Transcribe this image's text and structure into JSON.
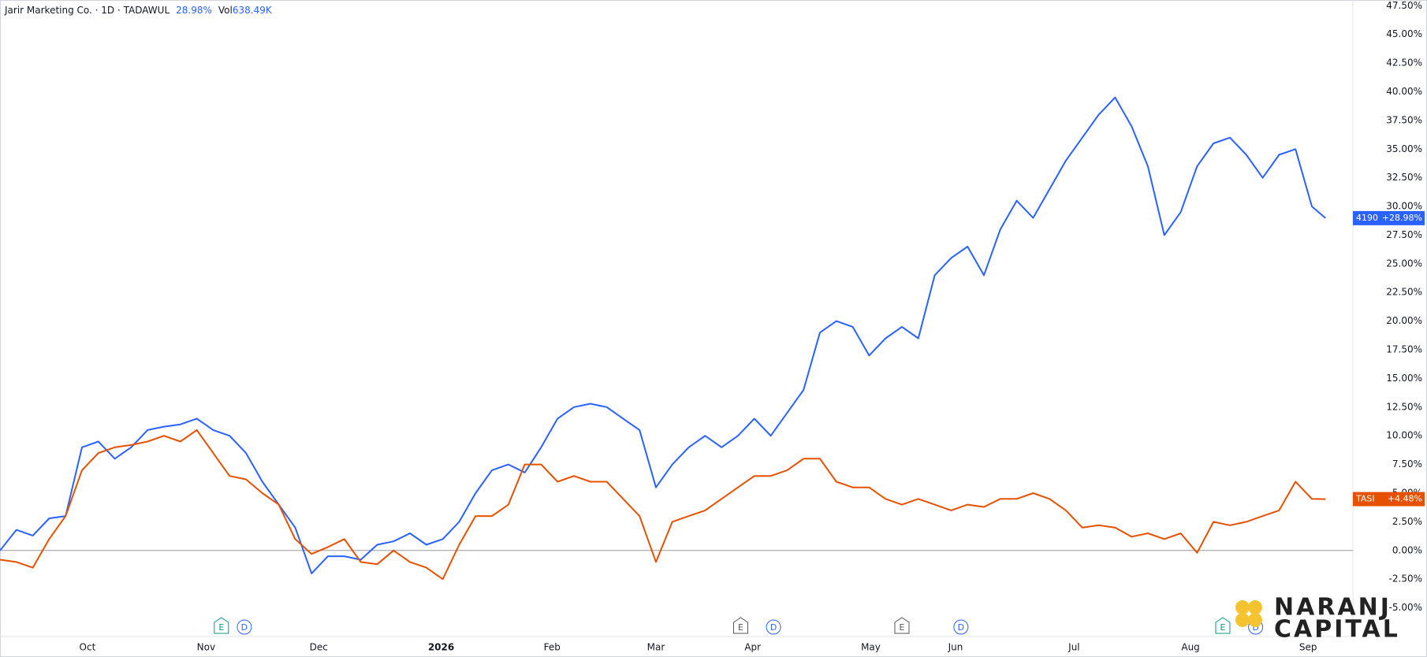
{
  "chart_data": {
    "type": "line",
    "title": "Jarir Marketing Co. · 1D · TADAWUL",
    "change_label": "28.98%",
    "volume_label": "Vol",
    "volume": "638.49K",
    "x": [
      0,
      3,
      6,
      9,
      12,
      15,
      18,
      21,
      24,
      27,
      30,
      33,
      36,
      39,
      42,
      45,
      48,
      51,
      54,
      57,
      60,
      63,
      66,
      69,
      72,
      75,
      78,
      81,
      84,
      87,
      90,
      93,
      96,
      99,
      102,
      105,
      108,
      111,
      114,
      117,
      120,
      123,
      126,
      129,
      132,
      135,
      138,
      141,
      144,
      147,
      150,
      153,
      156,
      159,
      162,
      165,
      168,
      171,
      174,
      177,
      180,
      183,
      186,
      189,
      192,
      195,
      198,
      201,
      204,
      207,
      210,
      213,
      216,
      219,
      222,
      225,
      228,
      231,
      234,
      237,
      240,
      242.5
    ],
    "series": [
      {
        "name": "4190",
        "color": "#2962ff",
        "last_label": "+28.98%",
        "values": [
          0,
          1.8,
          1.3,
          2.8,
          3.0,
          9.0,
          9.5,
          8.0,
          9.0,
          10.5,
          10.8,
          11.0,
          11.5,
          10.5,
          10.0,
          8.5,
          6.0,
          4.0,
          2.0,
          -2.0,
          -0.5,
          -0.5,
          -0.8,
          0.5,
          0.8,
          1.5,
          0.5,
          1.0,
          2.5,
          5.0,
          7.0,
          7.5,
          6.8,
          9.0,
          11.5,
          12.5,
          12.8,
          12.5,
          11.5,
          10.5,
          5.5,
          7.5,
          9.0,
          10.0,
          9.0,
          10.0,
          11.5,
          10.0,
          12.0,
          14.0,
          19.0,
          20.0,
          19.5,
          17.0,
          18.5,
          19.5,
          18.5,
          24.0,
          25.5,
          26.5,
          24.0,
          28.0,
          30.5,
          29.0,
          31.5,
          34.0,
          36.0,
          38.0,
          39.5,
          37.0,
          33.5,
          27.5,
          29.5,
          33.5,
          35.5,
          36.0,
          34.5,
          32.5,
          34.5,
          35.0,
          30.0,
          28.98
        ]
      },
      {
        "name": "TASI",
        "color": "#e65100",
        "last_label": "+4.48%",
        "values": [
          -0.8,
          -1.0,
          -1.5,
          1.0,
          3.0,
          7.0,
          8.5,
          9.0,
          9.2,
          9.5,
          10.0,
          9.5,
          10.5,
          8.5,
          6.5,
          6.2,
          5.0,
          4.0,
          1.0,
          -0.3,
          0.3,
          1.0,
          -1.0,
          -1.2,
          0.0,
          -1.0,
          -1.5,
          -2.5,
          0.5,
          3.0,
          3.0,
          4.0,
          7.5,
          7.5,
          6.0,
          6.5,
          6.0,
          6.0,
          4.5,
          3.0,
          -1.0,
          2.5,
          3.0,
          3.5,
          4.5,
          5.5,
          6.5,
          6.5,
          7.0,
          8.0,
          8.0,
          6.0,
          5.5,
          5.5,
          4.5,
          4.0,
          4.5,
          4.0,
          3.5,
          4.0,
          3.8,
          4.5,
          4.5,
          5.0,
          4.5,
          3.5,
          2.0,
          2.2,
          2.0,
          1.2,
          1.5,
          1.0,
          1.5,
          -0.2,
          2.5,
          2.2,
          2.5,
          3.0,
          3.5,
          6.0,
          4.5,
          4.48
        ]
      }
    ],
    "xlim": [
      0,
      247.5
    ],
    "ylim": [
      -7.5,
      48
    ],
    "xticks": [
      {
        "value": 16,
        "label": "Oct"
      },
      {
        "value": 37.7,
        "label": "Nov"
      },
      {
        "value": 58.3,
        "label": "Dec"
      },
      {
        "value": 80.7,
        "label": "2026"
      },
      {
        "value": 101,
        "label": "Feb"
      },
      {
        "value": 120,
        "label": "Mar"
      },
      {
        "value": 137.7,
        "label": "Apr"
      },
      {
        "value": 159.3,
        "label": "May"
      },
      {
        "value": 174.8,
        "label": "Jun"
      },
      {
        "value": 196.5,
        "label": "Jul"
      },
      {
        "value": 217.8,
        "label": "Aug"
      },
      {
        "value": 239.3,
        "label": "Sep"
      }
    ],
    "yticks": [
      {
        "value": -5,
        "label": "-5.00%"
      },
      {
        "value": -2.5,
        "label": "-2.50%"
      },
      {
        "value": 0,
        "label": "0.00%"
      },
      {
        "value": 2.5,
        "label": "2.50%"
      },
      {
        "value": 5,
        "label": "5.00%"
      },
      {
        "value": 7.5,
        "label": "7.50%"
      },
      {
        "value": 10,
        "label": "10.00%"
      },
      {
        "value": 12.5,
        "label": "12.50%"
      },
      {
        "value": 15,
        "label": "15.00%"
      },
      {
        "value": 17.5,
        "label": "17.50%"
      },
      {
        "value": 20,
        "label": "20.00%"
      },
      {
        "value": 22.5,
        "label": "22.50%"
      },
      {
        "value": 25,
        "label": "25.00%"
      },
      {
        "value": 27.5,
        "label": "27.50%"
      },
      {
        "value": 30,
        "label": "30.00%"
      },
      {
        "value": 32.5,
        "label": "32.50%"
      },
      {
        "value": 35,
        "label": "35.00%"
      },
      {
        "value": 37.5,
        "label": "37.50%"
      },
      {
        "value": 40,
        "label": "40.00%"
      },
      {
        "value": 42.5,
        "label": "42.50%"
      },
      {
        "value": 45,
        "label": "45.00%"
      },
      {
        "value": 47.5,
        "label": "47.50%"
      }
    ],
    "zero_line": true,
    "events": [
      {
        "label": "E",
        "x": 40.5,
        "color": "#089981"
      },
      {
        "label": "D",
        "x": 44.7,
        "color": "#2962ff"
      },
      {
        "label": "E",
        "x": 135.5,
        "color": "#555"
      },
      {
        "label": "D",
        "x": 141.5,
        "color": "#2962ff"
      },
      {
        "label": "E",
        "x": 165,
        "color": "#555"
      },
      {
        "label": "D",
        "x": 175.8,
        "color": "#2962ff"
      },
      {
        "label": "E",
        "x": 223.7,
        "color": "#089981"
      },
      {
        "label": "D",
        "x": 229.7,
        "color": "#2962ff"
      }
    ]
  },
  "logo": {
    "line1": "NARANJ",
    "line2": "CAPITAL"
  }
}
